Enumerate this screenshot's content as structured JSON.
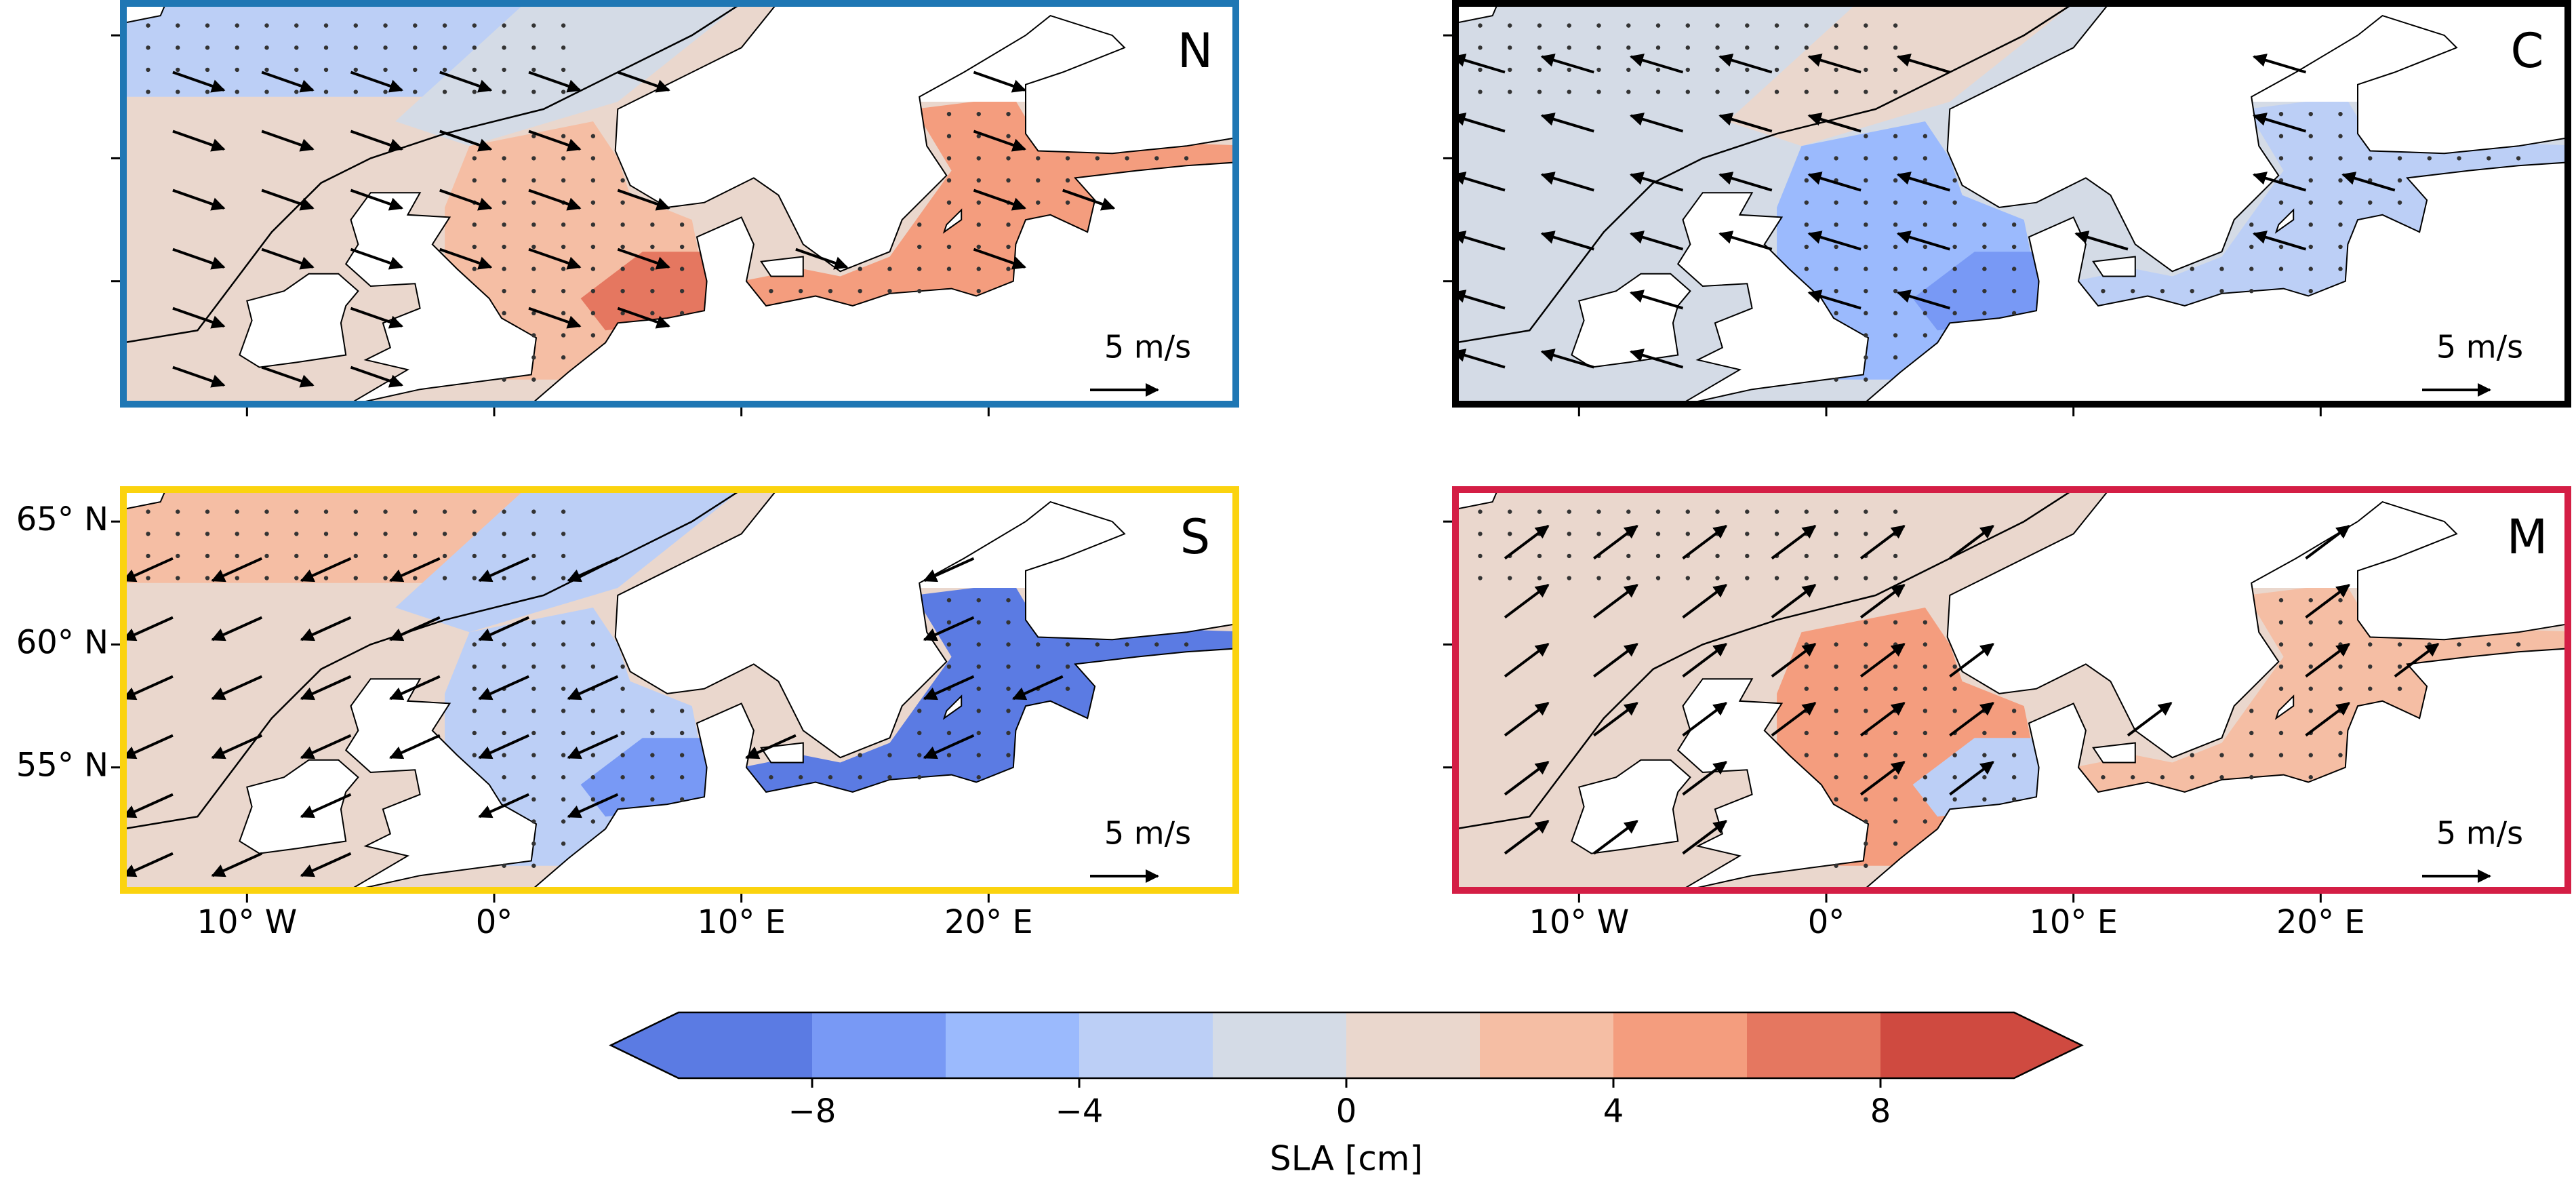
{
  "chart_data": [
    {
      "type": "map",
      "label": "N",
      "frame_color": "#1f77b4",
      "xlim": [
        -15,
        30
      ],
      "ylim": [
        50,
        66.3
      ],
      "xticks": [
        -10,
        0,
        10,
        20
      ],
      "yticks": [
        55,
        60,
        65
      ],
      "scale_label": "5 m/s"
    },
    {
      "type": "map",
      "label": "C",
      "frame_color": "#000000",
      "xlim": [
        -15,
        30
      ],
      "ylim": [
        50,
        66.3
      ],
      "xticks": [
        -10,
        0,
        10,
        20
      ],
      "yticks": [
        55,
        60,
        65
      ],
      "scale_label": "5 m/s"
    },
    {
      "type": "map",
      "label": "S",
      "frame_color": "#fbd30f",
      "xlim": [
        -15,
        30
      ],
      "ylim": [
        50,
        66.3
      ],
      "xticks": [
        {
          "value": -10,
          "label": "10° W"
        },
        {
          "value": 0,
          "label": "0°"
        },
        {
          "value": 10,
          "label": "10° E"
        },
        {
          "value": 20,
          "label": "20° E"
        }
      ],
      "yticks": [
        {
          "value": 55,
          "label": "55° N"
        },
        {
          "value": 60,
          "label": "60° N"
        },
        {
          "value": 65,
          "label": "65° N"
        }
      ],
      "scale_label": "5 m/s"
    },
    {
      "type": "map",
      "label": "M",
      "frame_color": "#d41e45",
      "xlim": [
        -15,
        30
      ],
      "ylim": [
        50,
        66.3
      ],
      "xticks": [
        {
          "value": -10,
          "label": "10° W"
        },
        {
          "value": 0,
          "label": "0°"
        },
        {
          "value": 10,
          "label": "10° E"
        },
        {
          "value": 20,
          "label": "20° E"
        }
      ],
      "yticks": [
        55,
        60,
        65
      ],
      "scale_label": "5 m/s"
    },
    {
      "type": "colorbar",
      "label": "SLA [cm]",
      "xlim": [
        -10,
        10
      ],
      "extend": "both",
      "bins": [
        -10,
        -8,
        -6,
        -4,
        -2,
        0,
        2,
        4,
        6,
        8,
        10
      ],
      "colors": [
        "#5b7be3",
        "#7899f5",
        "#9bbafd",
        "#bccff6",
        "#d4dbe6",
        "#ead7cd",
        "#f5bea4",
        "#f49d7e",
        "#e57760",
        "#cf4a40"
      ],
      "xticks": [
        {
          "value": -8,
          "label": "−8"
        },
        {
          "value": -4,
          "label": "−4"
        },
        0,
        4,
        8
      ]
    }
  ]
}
